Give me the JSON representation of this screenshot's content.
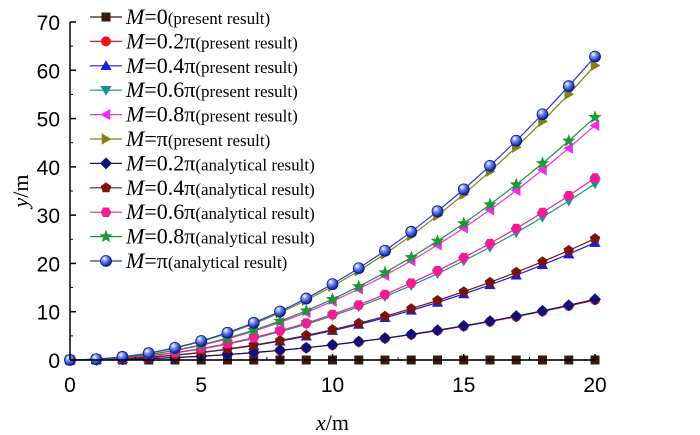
{
  "chart_data": {
    "type": "line",
    "title": "",
    "xlabel": "x/m",
    "ylabel": "y/m",
    "xlim": [
      0,
      20
    ],
    "ylim": [
      0,
      70
    ],
    "xticks": [
      0,
      5,
      10,
      15,
      20
    ],
    "yticks": [
      0,
      10,
      20,
      30,
      40,
      50,
      60,
      70
    ],
    "legend_position": "top-left",
    "x": [
      0,
      1,
      2,
      3,
      4,
      5,
      6,
      7,
      8,
      9,
      10,
      11,
      12,
      13,
      14,
      15,
      16,
      17,
      18,
      19,
      20
    ],
    "series": [
      {
        "name": "M=0(present result)",
        "var": "M",
        "eq": "=0",
        "note": "(present result)",
        "color": "#3a1a0e",
        "marker": "square",
        "values": [
          0,
          0,
          0,
          0,
          0,
          0,
          0,
          0,
          0,
          0,
          0,
          0,
          0,
          0,
          0,
          0,
          0,
          0,
          0,
          0,
          0
        ]
      },
      {
        "name": "M=0.2π(present result)",
        "var": "M",
        "eq": "=0.2π",
        "note": "(present result)",
        "color": "#e8141e",
        "marker": "circle",
        "values": [
          0,
          0.03,
          0.12,
          0.28,
          0.5,
          0.78,
          1.12,
          1.52,
          1.99,
          2.52,
          3.1,
          3.76,
          4.47,
          5.25,
          6.08,
          6.98,
          7.94,
          8.97,
          10.05,
          11.2,
          12.4
        ]
      },
      {
        "name": "M=0.4π(present result)",
        "var": "M",
        "eq": "=0.4π",
        "note": "(present result)",
        "color": "#1a1ae6",
        "marker": "triangle-up",
        "values": [
          0,
          0.06,
          0.24,
          0.55,
          0.97,
          1.52,
          2.19,
          2.98,
          3.89,
          4.92,
          6.08,
          7.35,
          8.75,
          10.27,
          11.91,
          13.67,
          15.55,
          17.56,
          19.69,
          21.93,
          24.3
        ]
      },
      {
        "name": "M=0.6π(present result)",
        "var": "M",
        "eq": "=0.6π",
        "note": "(present result)",
        "color": "#1a9090",
        "marker": "triangle-down",
        "values": [
          0,
          0.09,
          0.36,
          0.82,
          1.46,
          2.28,
          3.28,
          4.47,
          5.84,
          7.39,
          9.13,
          11.04,
          13.14,
          15.42,
          17.88,
          20.53,
          23.35,
          26.37,
          29.56,
          32.93,
          36.5
        ]
      },
      {
        "name": "M=0.8π(present result)",
        "var": "M",
        "eq": "=0.8π",
        "note": "(present result)",
        "color": "#f02ce6",
        "marker": "triangle-left",
        "values": [
          0,
          0.12,
          0.48,
          1.09,
          1.94,
          3.03,
          4.37,
          5.95,
          7.77,
          9.83,
          12.15,
          14.7,
          17.5,
          20.53,
          23.81,
          27.34,
          31.1,
          35.11,
          39.37,
          43.86,
          48.6
        ]
      },
      {
        "name": "M=π(present result)",
        "var": "M",
        "eq": "=π",
        "note": "(present result)",
        "color": "#808014",
        "marker": "triangle-right",
        "values": [
          0,
          0.15,
          0.61,
          1.37,
          2.44,
          3.81,
          5.49,
          7.47,
          9.76,
          12.35,
          15.25,
          18.45,
          21.96,
          25.77,
          29.89,
          34.31,
          39.04,
          44.07,
          49.41,
          55.05,
          61.0
        ]
      },
      {
        "name": "M=0.2π(analytical result)",
        "var": "M",
        "eq": "=0.2π",
        "note": "(analytical result)",
        "color": "#0a1478",
        "marker": "diamond",
        "values": [
          0,
          0.03,
          0.13,
          0.29,
          0.5,
          0.79,
          1.13,
          1.54,
          2.01,
          2.55,
          3.14,
          3.8,
          4.52,
          5.31,
          6.16,
          7.07,
          8.04,
          9.08,
          10.18,
          11.34,
          12.57
        ]
      },
      {
        "name": "M=0.4π(analytical result)",
        "var": "M",
        "eq": "=0.4π",
        "note": "(analytical result)",
        "color": "#78140a",
        "marker": "pentagon",
        "values": [
          0,
          0.06,
          0.25,
          0.57,
          1.01,
          1.57,
          2.26,
          3.08,
          4.02,
          5.09,
          6.28,
          7.6,
          9.05,
          10.62,
          12.32,
          14.14,
          16.08,
          18.16,
          20.36,
          22.68,
          25.13
        ]
      },
      {
        "name": "M=0.6π(analytical result)",
        "var": "M",
        "eq": "=0.6π",
        "note": "(analytical result)",
        "color": "#f01e96",
        "marker": "hexagon",
        "values": [
          0,
          0.09,
          0.38,
          0.85,
          1.51,
          2.36,
          3.39,
          4.62,
          6.03,
          7.63,
          9.42,
          11.4,
          13.57,
          15.93,
          18.47,
          21.21,
          24.13,
          27.24,
          30.54,
          34.02,
          37.7
        ]
      },
      {
        "name": "M=0.8π(analytical result)",
        "var": "M",
        "eq": "=0.8π",
        "note": "(analytical result)",
        "color": "#1e9632",
        "marker": "star",
        "values": [
          0,
          0.13,
          0.5,
          1.13,
          2.01,
          3.14,
          4.52,
          6.16,
          8.04,
          10.18,
          12.57,
          15.21,
          18.1,
          21.24,
          24.63,
          28.27,
          32.17,
          36.32,
          40.72,
          45.36,
          50.27
        ]
      },
      {
        "name": "M=π(analytical result)",
        "var": "M",
        "eq": "=π",
        "note": "(analytical result)",
        "color": "#1e3cd2",
        "marker": "sphere",
        "values": [
          0,
          0.16,
          0.63,
          1.41,
          2.51,
          3.93,
          5.65,
          7.7,
          10.05,
          12.72,
          15.71,
          19.0,
          22.62,
          26.55,
          30.79,
          35.34,
          40.21,
          45.4,
          50.89,
          56.71,
          62.83
        ]
      }
    ]
  }
}
